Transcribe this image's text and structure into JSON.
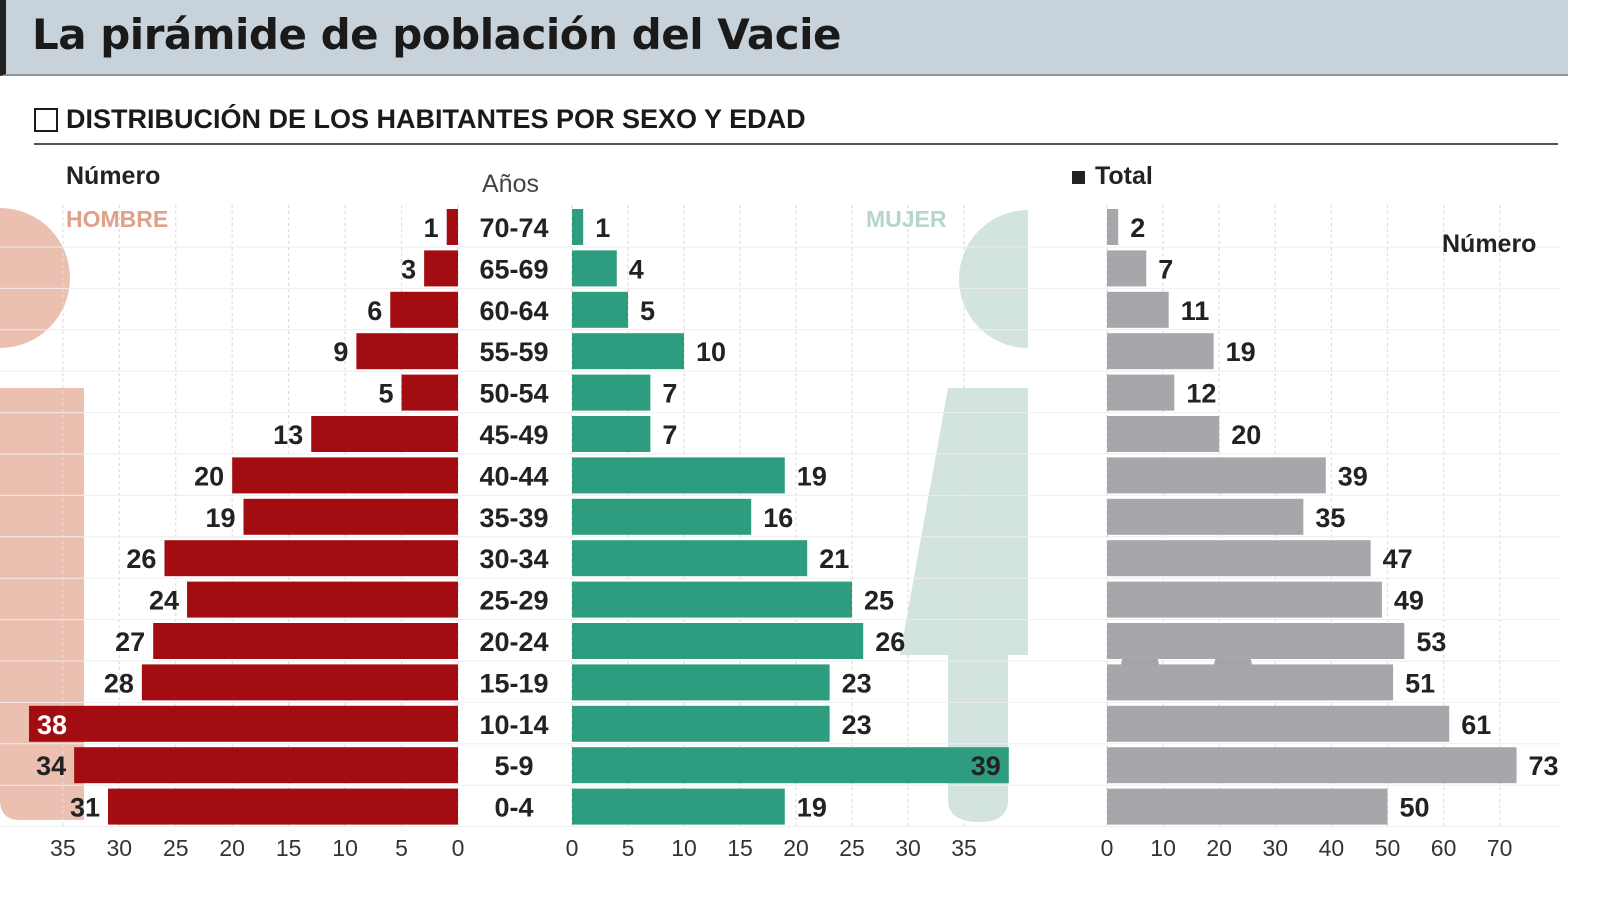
{
  "title": "La pirámide de población del Vacie",
  "subtitle": "DISTRIBUCIÓN DE LOS HABITANTES POR SEXO Y EDAD",
  "labels": {
    "numero_left": "Número",
    "anos": "Años",
    "hombre": "HOMBRE",
    "mujer": "MUJER",
    "total": "Total",
    "numero_right": "Número"
  },
  "colors": {
    "male": "#a30d12",
    "female": "#2e9c7e",
    "total": "#a7a7ab",
    "male_sil": "#ebc0b0",
    "female_sil": "#d3e3df"
  },
  "chart_data": {
    "type": "bar",
    "categories": [
      "70-74",
      "65-69",
      "60-64",
      "55-59",
      "50-54",
      "45-49",
      "40-44",
      "35-39",
      "30-34",
      "25-29",
      "20-24",
      "15-19",
      "10-14",
      "5-9",
      "0-4"
    ],
    "series": [
      {
        "name": "Hombre",
        "values": [
          1,
          3,
          6,
          9,
          5,
          13,
          20,
          19,
          26,
          24,
          27,
          28,
          38,
          34,
          31
        ],
        "xlim": [
          0,
          35
        ],
        "ticks": [
          35,
          30,
          25,
          20,
          15,
          10,
          5,
          0
        ]
      },
      {
        "name": "Mujer",
        "values": [
          1,
          4,
          5,
          10,
          7,
          7,
          19,
          16,
          21,
          25,
          26,
          23,
          23,
          39,
          19
        ],
        "xlim": [
          0,
          35
        ],
        "ticks": [
          0,
          5,
          10,
          15,
          20,
          25,
          30,
          35
        ]
      },
      {
        "name": "Total",
        "values": [
          2,
          7,
          11,
          19,
          12,
          20,
          39,
          35,
          47,
          49,
          53,
          51,
          61,
          73,
          50
        ],
        "xlim": [
          0,
          70
        ],
        "ticks": [
          0,
          10,
          20,
          30,
          40,
          50,
          60,
          70
        ]
      }
    ]
  }
}
